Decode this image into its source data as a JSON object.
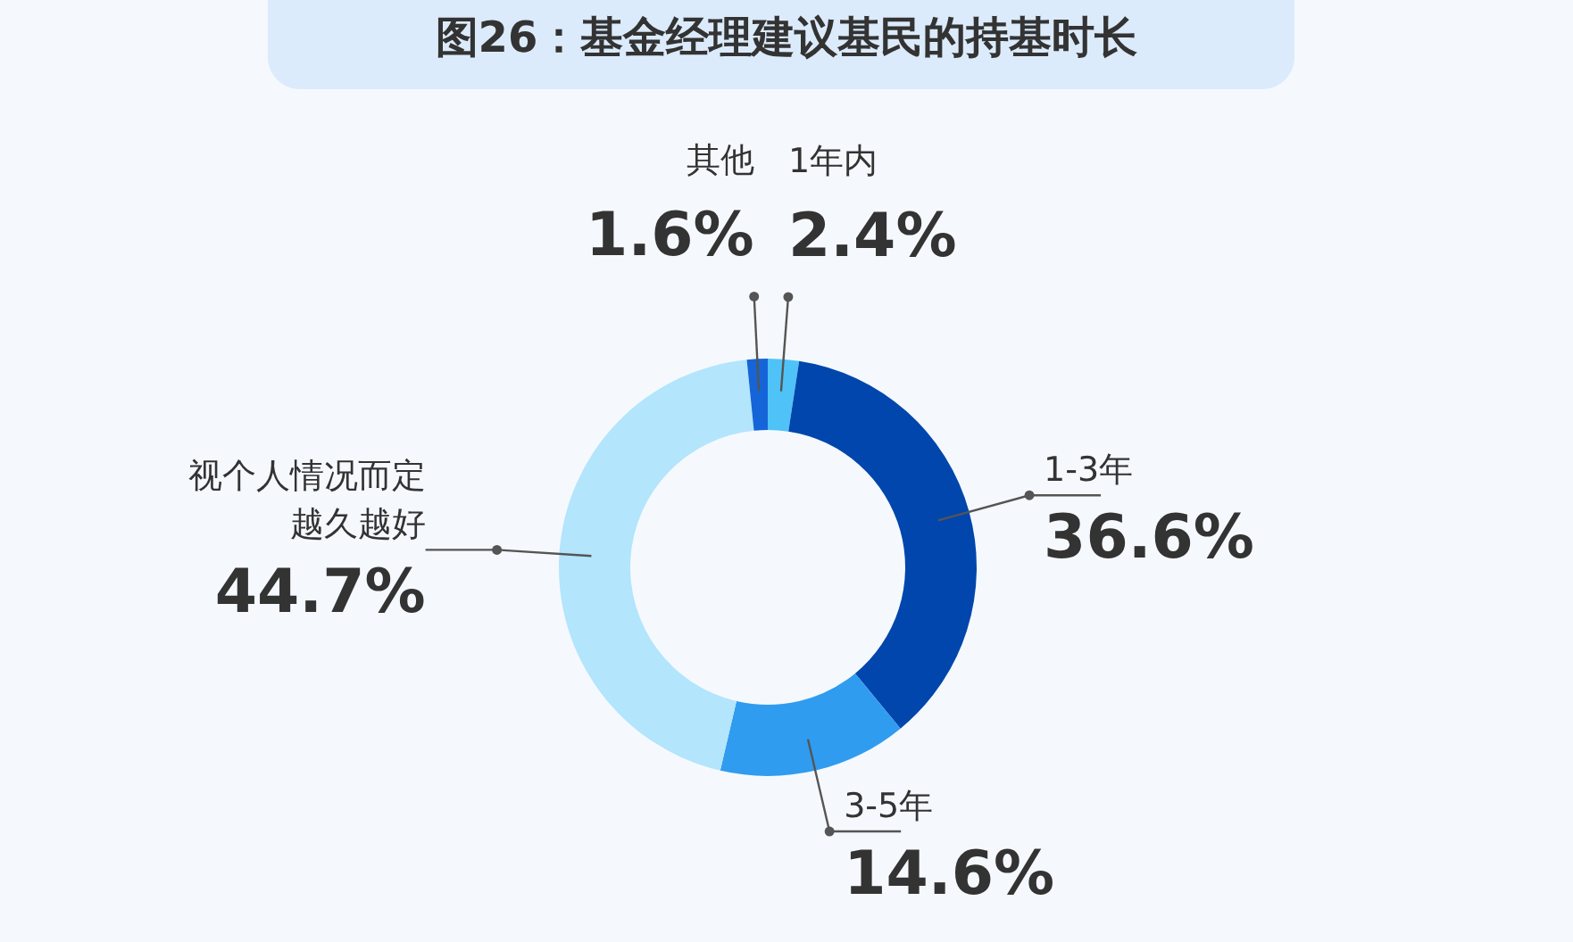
{
  "chart_data": {
    "type": "donut",
    "title": "图26：基金经理建议基民的持基时长",
    "categories": [
      "1年内",
      "1-3年",
      "3-5年",
      "视个人情况而定越久越好",
      "其他"
    ],
    "values": [
      2.4,
      36.6,
      14.6,
      44.7,
      1.6
    ],
    "colors": [
      "#4fc3f7",
      "#0046ad",
      "#2f9cf0",
      "#b3e5fc",
      "#1565d8"
    ],
    "value_labels": [
      "2.4%",
      "36.6%",
      "14.6%",
      "44.7%",
      "1.6%"
    ]
  }
}
